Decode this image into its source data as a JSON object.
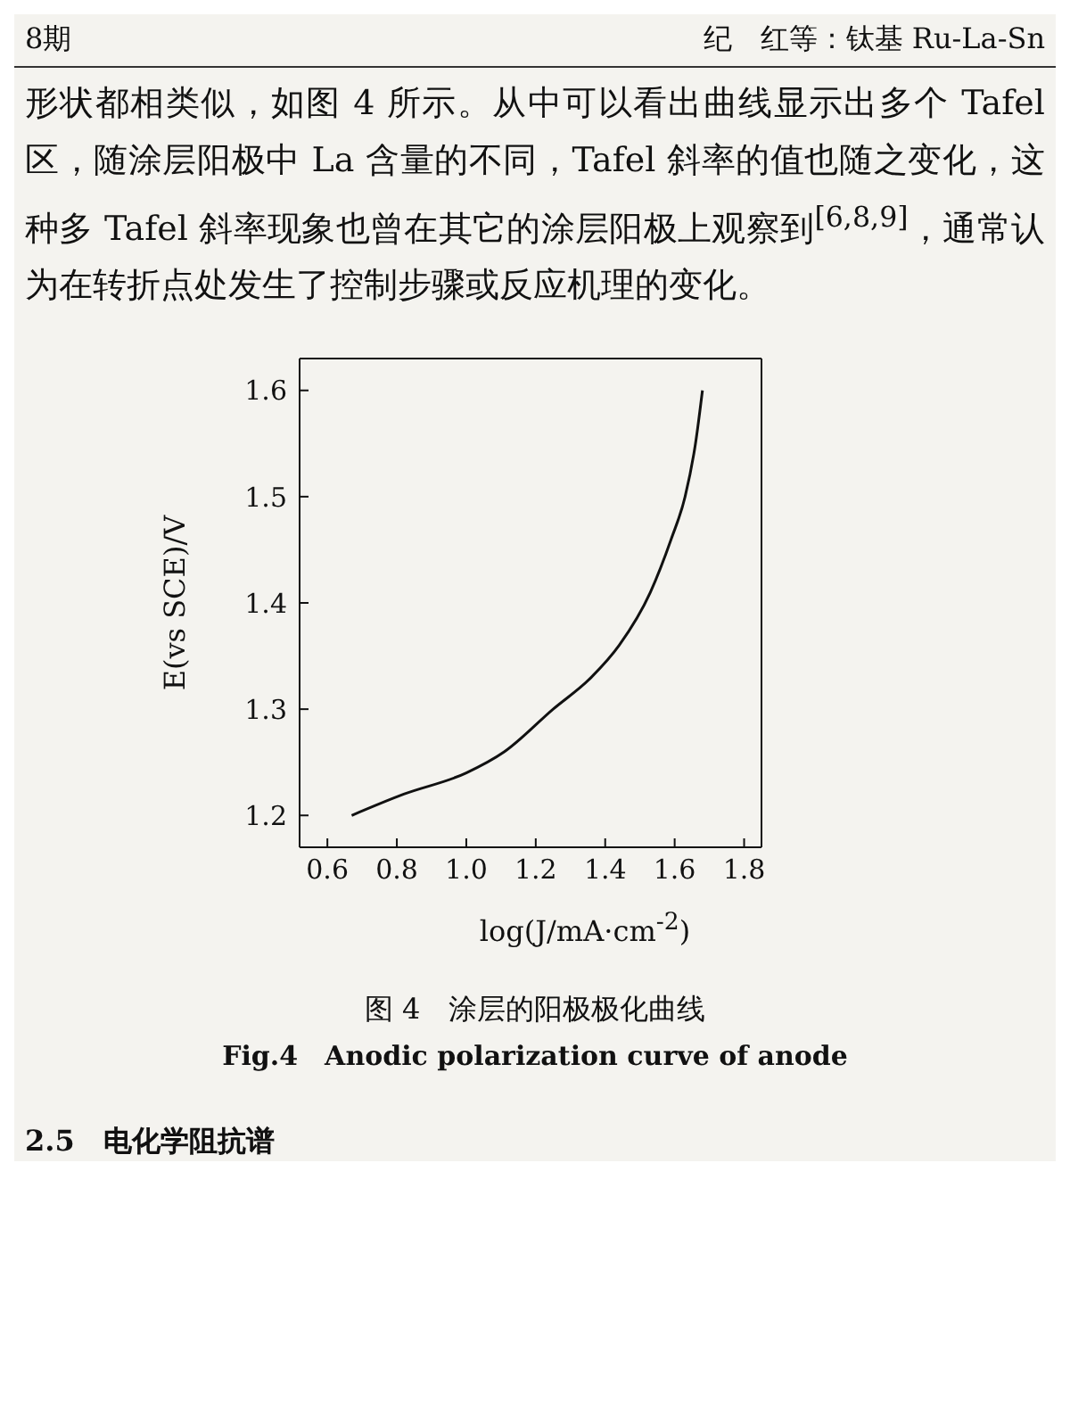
{
  "chart_data": {
    "type": "line",
    "title": "图 4　涂层的阳极极化曲线",
    "subtitle": "Fig.4　Anodic polarization curve of anode",
    "xlabel": "log(J/mA·cm$^{-2}$)",
    "ylabel": "E(vs SCE)/V",
    "annotations": [
      "8期",
      "纪　红等：钛基 Ru-La-Sn",
      "形状都相类似，如图 4 所示。从中可以看出曲线显示出多个 Tafel 区，随涂层阳极中 La 含量的不同，Tafel 斜率的值也随之变化，这种多 Tafel 斜率现象也曾在其它的涂层阳极上观察到$^{[6,8,9]}$，通常认为在转折点处发生了控制步骤或反应机理的变化。",
      "2.5　电化学阻抗谱"
    ],
    "x": [
      0.67,
      0.82,
      1.0,
      1.11,
      1.25,
      1.36,
      1.44,
      1.53,
      1.59,
      1.63,
      1.66,
      1.68
    ],
    "series": [
      {
        "color": "#111111",
        "values": [
          1.2,
          1.22,
          1.24,
          1.26,
          1.3,
          1.33,
          1.36,
          1.41,
          1.46,
          1.5,
          1.55,
          1.6
        ]
      }
    ],
    "xlim": [
      0.52,
      1.85
    ],
    "ylim": [
      1.17,
      1.63
    ],
    "xticks": [
      0.6,
      0.8,
      {
        "value": 1,
        "label": "1.0"
      },
      1.2,
      1.4,
      1.6,
      1.8
    ],
    "yticks": [
      1.2,
      1.3,
      1.4,
      1.5,
      1.6
    ],
    "grid": false,
    "legend": false,
    "marker": "none",
    "line_style": "solid"
  }
}
